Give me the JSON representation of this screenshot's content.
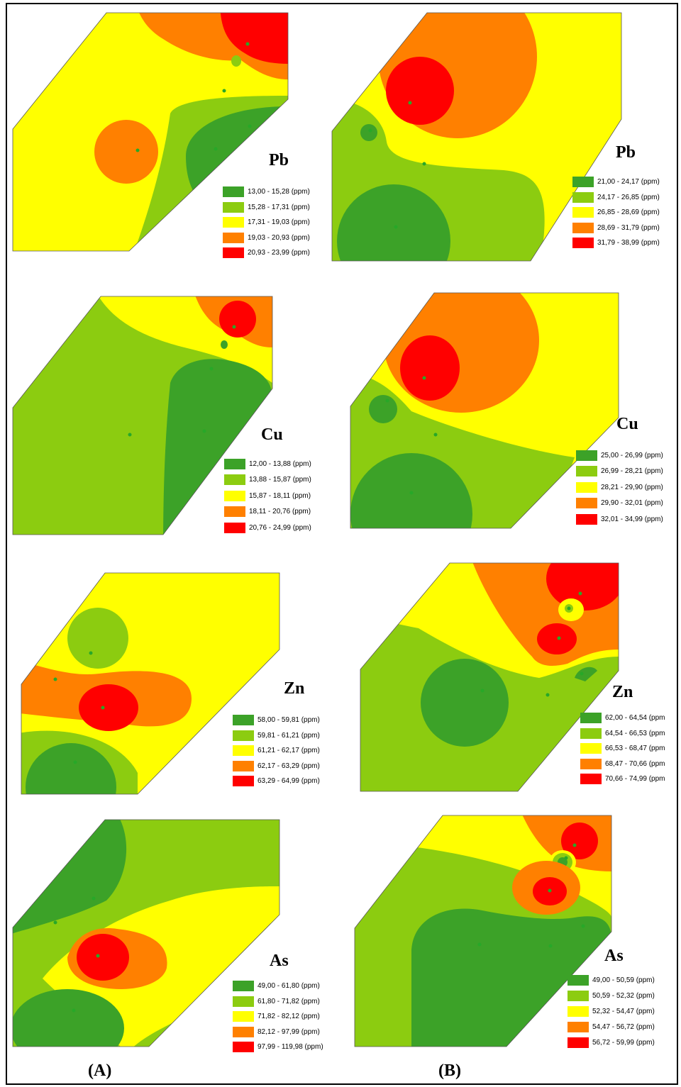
{
  "colors": {
    "dark_green": "#3ca228",
    "light_green": "#8ccc10",
    "yellow": "#ffff00",
    "orange": "#ff8000",
    "red": "#ff0000"
  },
  "panels": {
    "A_Pb": {
      "element": "Pb",
      "legend": [
        "13,00 - 15,28 (ppm)",
        "15,28 - 17,31 (ppm)",
        "17,31 - 19,03 (ppm)",
        "19,03 - 20,93 (ppm)",
        "20,93 - 23,99 (ppm)"
      ]
    },
    "B_Pb": {
      "element": "Pb",
      "legend": [
        "21,00 - 24,17 (ppm)",
        "24,17 - 26,85 (ppm)",
        "26,85 - 28,69 (ppm)",
        "28,69 - 31,79 (ppm)",
        "31,79 - 38,99 (ppm)"
      ]
    },
    "A_Cu": {
      "element": "Cu",
      "legend": [
        "12,00 - 13,88 (ppm)",
        "13,88 - 15,87 (ppm)",
        "15,87 - 18,11 (ppm)",
        "18,11 - 20,76 (ppm)",
        "20,76 - 24,99 (ppm)"
      ]
    },
    "B_Cu": {
      "element": "Cu",
      "legend": [
        "25,00 - 26,99 (ppm)",
        "26,99 - 28,21 (ppm)",
        "28,21 - 29,90 (ppm)",
        "29,90 - 32,01 (ppm)",
        "32,01 - 34,99 (ppm)"
      ]
    },
    "A_Zn": {
      "element": "Zn",
      "legend": [
        "58,00 - 59,81 (ppm)",
        "59,81 - 61,21 (ppm)",
        "61,21 - 62,17 (ppm)",
        "62,17 - 63,29 (ppm)",
        "63,29 - 64,99 (ppm)"
      ]
    },
    "B_Zn": {
      "element": "Zn",
      "legend": [
        "62,00 - 64,54 (ppm",
        "64,54 - 66,53 (ppm",
        "66,53 - 68,47 (ppm",
        "68,47 - 70,66 (ppm",
        "70,66 - 74,99 (ppm"
      ]
    },
    "A_As": {
      "element": "As",
      "legend": [
        "49,00 - 61,80 (ppm)",
        "61,80 - 71,82 (ppm)",
        "71,82 - 82,12 (ppm)",
        "82,12 - 97,99 (ppm)",
        "97,99 - 119,98 (ppm)"
      ]
    },
    "B_As": {
      "element": "As",
      "legend": [
        "49,00 - 50,59 (ppm)",
        "50,59 - 52,32 (ppm)",
        "52,32 - 54,47 (ppm)",
        "54,47 - 56,72 (ppm)",
        "56,72 - 59,99 (ppm)"
      ]
    }
  },
  "captions": {
    "left": "(A)",
    "right": "(B)"
  }
}
